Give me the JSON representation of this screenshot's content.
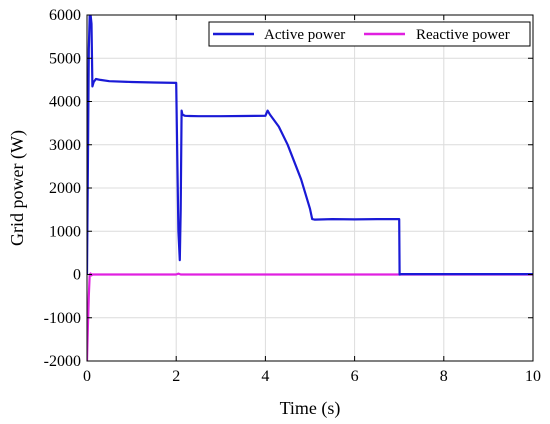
{
  "chart_data": {
    "type": "line",
    "xlabel": "Time (s)",
    "ylabel": "Grid power (W)",
    "xlim": [
      0,
      10
    ],
    "ylim": [
      -2000,
      6000
    ],
    "xticks": [
      0,
      2,
      4,
      6,
      8,
      10
    ],
    "yticks": [
      -2000,
      -1000,
      0,
      1000,
      2000,
      3000,
      4000,
      5000,
      6000
    ],
    "grid": true,
    "legend_position": "top-right",
    "series": [
      {
        "name": "Active power",
        "color": "#1a1ad6",
        "x": [
          0.0,
          0.02,
          0.04,
          0.06,
          0.08,
          0.1,
          0.12,
          0.15,
          0.2,
          0.3,
          0.5,
          1.0,
          1.5,
          2.0,
          2.02,
          2.05,
          2.08,
          2.1,
          2.12,
          2.14,
          2.17,
          2.2,
          2.3,
          2.5,
          3.0,
          3.5,
          4.0,
          4.05,
          4.1,
          4.3,
          4.5,
          4.8,
          5.0,
          5.05,
          5.1,
          5.5,
          6.0,
          6.5,
          7.0,
          7.01,
          7.05,
          8.0,
          9.0,
          10.0
        ],
        "y": [
          0,
          2500,
          5200,
          6000,
          6000,
          5800,
          4350,
          4450,
          4520,
          4500,
          4470,
          4450,
          4440,
          4430,
          3000,
          1000,
          330,
          1500,
          3790,
          3700,
          3680,
          3670,
          3665,
          3660,
          3660,
          3665,
          3670,
          3790,
          3700,
          3420,
          3000,
          2200,
          1520,
          1280,
          1270,
          1280,
          1275,
          1280,
          1280,
          0,
          10,
          10,
          10,
          10
        ]
      },
      {
        "name": "Reactive power",
        "color": "#e020e0",
        "x": [
          0.0,
          0.02,
          0.04,
          0.06,
          0.08,
          0.1,
          0.12,
          0.2,
          1.0,
          2.0,
          2.05,
          2.1,
          3.0,
          4.0,
          5.0,
          6.0,
          7.0,
          8.0,
          9.0,
          10.0
        ],
        "y": [
          -2000,
          -1200,
          -500,
          0,
          20,
          -20,
          0,
          0,
          0,
          0,
          20,
          0,
          0,
          0,
          0,
          0,
          0,
          0,
          0,
          0
        ]
      }
    ]
  }
}
